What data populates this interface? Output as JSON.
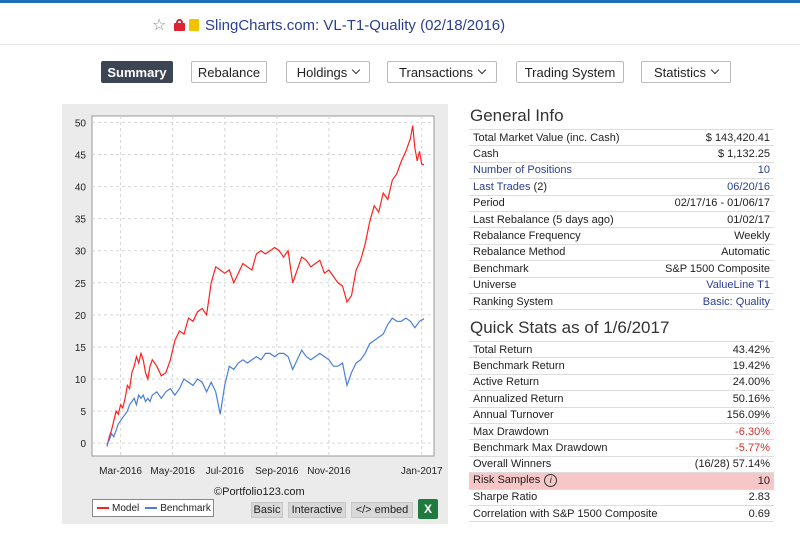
{
  "header": {
    "title": "SlingCharts.com: VL-T1-Quality (02/18/2016)"
  },
  "nav": {
    "summary": "Summary",
    "rebalance": "Rebalance",
    "holdings": "Holdings",
    "transactions": "Transactions",
    "trading_system": "Trading System",
    "statistics": "Statistics"
  },
  "chart": {
    "credit": "©Portfolio123.com",
    "legend_model": "Model",
    "legend_benchmark": "Benchmark",
    "btn_basic": "Basic",
    "btn_interactive": "Interactive",
    "btn_embed": "</> embed",
    "excel_icon": "X"
  },
  "chart_data": {
    "type": "line",
    "x_labels": [
      "Mar-2016",
      "May-2016",
      "Jul-2016",
      "Sep-2016",
      "Nov-2016",
      "Jan-2017"
    ],
    "y_ticks": [
      0,
      5,
      10,
      15,
      20,
      25,
      30,
      35,
      40,
      45,
      50
    ],
    "ylim": [
      -2,
      51
    ],
    "grid": true,
    "legend_position": "bottom-left",
    "colors": {
      "model": "#ff2020",
      "benchmark": "#4a7fd6"
    },
    "series": [
      {
        "name": "Model",
        "points": [
          [
            0,
            -0.5
          ],
          [
            0.05,
            1
          ],
          [
            0.1,
            2
          ],
          [
            0.15,
            3.5
          ],
          [
            0.2,
            5
          ],
          [
            0.25,
            4.5
          ],
          [
            0.3,
            6
          ],
          [
            0.35,
            5.5
          ],
          [
            0.4,
            7
          ],
          [
            0.45,
            9
          ],
          [
            0.5,
            8.5
          ],
          [
            0.55,
            11
          ],
          [
            0.6,
            12
          ],
          [
            0.65,
            13.5
          ],
          [
            0.7,
            12.5
          ],
          [
            0.75,
            14
          ],
          [
            0.8,
            13
          ],
          [
            0.85,
            11
          ],
          [
            0.9,
            10
          ],
          [
            0.95,
            12
          ],
          [
            1.0,
            13
          ],
          [
            1.1,
            12
          ],
          [
            1.2,
            10.5
          ],
          [
            1.3,
            11
          ],
          [
            1.4,
            13
          ],
          [
            1.5,
            16
          ],
          [
            1.6,
            17.5
          ],
          [
            1.7,
            17
          ],
          [
            1.8,
            19.5
          ],
          [
            1.9,
            19
          ],
          [
            2.0,
            20.5
          ],
          [
            2.1,
            21
          ],
          [
            2.2,
            20
          ],
          [
            2.3,
            25
          ],
          [
            2.4,
            27.5
          ],
          [
            2.5,
            27
          ],
          [
            2.6,
            26.5
          ],
          [
            2.7,
            27
          ],
          [
            2.8,
            25
          ],
          [
            2.9,
            26.5
          ],
          [
            3.0,
            28
          ],
          [
            3.1,
            27.5
          ],
          [
            3.2,
            27
          ],
          [
            3.3,
            29.5
          ],
          [
            3.4,
            30
          ],
          [
            3.5,
            29.5
          ],
          [
            3.6,
            30
          ],
          [
            3.7,
            30.5
          ],
          [
            3.8,
            30
          ],
          [
            3.9,
            29
          ],
          [
            4.0,
            30
          ],
          [
            4.1,
            25
          ],
          [
            4.2,
            27
          ],
          [
            4.3,
            29
          ],
          [
            4.4,
            28.5
          ],
          [
            4.5,
            27.5
          ],
          [
            4.6,
            28
          ],
          [
            4.7,
            28.5
          ],
          [
            4.8,
            26.5
          ],
          [
            4.9,
            27
          ],
          [
            5.0,
            26
          ],
          [
            5.1,
            25
          ],
          [
            5.2,
            24.5
          ],
          [
            5.3,
            22
          ],
          [
            5.4,
            23
          ],
          [
            5.5,
            27
          ],
          [
            5.6,
            28.5
          ],
          [
            5.7,
            31
          ],
          [
            5.8,
            34.5
          ],
          [
            5.9,
            37
          ],
          [
            6.0,
            36
          ],
          [
            6.1,
            39
          ],
          [
            6.2,
            38
          ],
          [
            6.3,
            41
          ],
          [
            6.4,
            42
          ],
          [
            6.5,
            44
          ],
          [
            6.6,
            45.5
          ],
          [
            6.7,
            47.5
          ],
          [
            6.75,
            49.5
          ],
          [
            6.8,
            46
          ],
          [
            6.85,
            44
          ],
          [
            6.9,
            45.5
          ],
          [
            6.95,
            43.5
          ],
          [
            7.0,
            43.4
          ]
        ]
      },
      {
        "name": "Benchmark",
        "points": [
          [
            0,
            -0.2
          ],
          [
            0.05,
            0.5
          ],
          [
            0.1,
            1.5
          ],
          [
            0.15,
            1
          ],
          [
            0.2,
            2
          ],
          [
            0.25,
            3
          ],
          [
            0.3,
            3.5
          ],
          [
            0.35,
            4
          ],
          [
            0.4,
            4.5
          ],
          [
            0.45,
            5
          ],
          [
            0.5,
            6
          ],
          [
            0.55,
            6.5
          ],
          [
            0.6,
            7
          ],
          [
            0.65,
            6
          ],
          [
            0.7,
            7.5
          ],
          [
            0.75,
            7
          ],
          [
            0.8,
            7.5
          ],
          [
            0.85,
            6.5
          ],
          [
            0.9,
            7
          ],
          [
            0.95,
            6.5
          ],
          [
            1.0,
            7.5
          ],
          [
            1.1,
            8
          ],
          [
            1.2,
            7
          ],
          [
            1.3,
            8
          ],
          [
            1.4,
            8.5
          ],
          [
            1.5,
            7.5
          ],
          [
            1.6,
            8.5
          ],
          [
            1.7,
            10
          ],
          [
            1.8,
            9.5
          ],
          [
            1.9,
            9
          ],
          [
            2.0,
            10
          ],
          [
            2.1,
            9.5
          ],
          [
            2.2,
            8
          ],
          [
            2.3,
            9.5
          ],
          [
            2.4,
            8
          ],
          [
            2.5,
            4.5
          ],
          [
            2.6,
            9
          ],
          [
            2.7,
            12
          ],
          [
            2.8,
            11.5
          ],
          [
            2.9,
            12.5
          ],
          [
            3.0,
            13
          ],
          [
            3.1,
            12.5
          ],
          [
            3.2,
            13
          ],
          [
            3.3,
            13.5
          ],
          [
            3.4,
            13
          ],
          [
            3.5,
            14
          ],
          [
            3.6,
            14
          ],
          [
            3.7,
            13.5
          ],
          [
            3.8,
            14
          ],
          [
            3.9,
            14
          ],
          [
            4.0,
            13.5
          ],
          [
            4.1,
            11.5
          ],
          [
            4.2,
            13
          ],
          [
            4.3,
            14.5
          ],
          [
            4.4,
            13.5
          ],
          [
            4.5,
            13
          ],
          [
            4.6,
            13.5
          ],
          [
            4.7,
            14
          ],
          [
            4.8,
            13.5
          ],
          [
            4.9,
            13
          ],
          [
            5.0,
            12
          ],
          [
            5.1,
            12
          ],
          [
            5.2,
            12.5
          ],
          [
            5.3,
            9
          ],
          [
            5.4,
            11
          ],
          [
            5.5,
            12.5
          ],
          [
            5.6,
            13
          ],
          [
            5.7,
            14
          ],
          [
            5.8,
            15.5
          ],
          [
            5.9,
            16
          ],
          [
            6.0,
            16.5
          ],
          [
            6.1,
            17
          ],
          [
            6.2,
            18.5
          ],
          [
            6.3,
            19.5
          ],
          [
            6.4,
            19
          ],
          [
            6.5,
            19
          ],
          [
            6.6,
            19.5
          ],
          [
            6.7,
            19
          ],
          [
            6.75,
            18.5
          ],
          [
            6.8,
            18
          ],
          [
            6.9,
            19
          ],
          [
            7.0,
            19.4
          ]
        ]
      }
    ]
  },
  "general_info": {
    "title": "General Info",
    "rows": [
      {
        "label": "Total Market Value (inc. Cash)",
        "value": "$ 143,420.41"
      },
      {
        "label": "Cash",
        "value": "$ 1,132.25"
      },
      {
        "label": "Number of Positions",
        "value": "10"
      },
      {
        "label": "Last Trades",
        "extra": "(2)",
        "value": "06/20/16"
      },
      {
        "label": "Period",
        "value": "02/17/16 - 01/06/17"
      },
      {
        "label": "Last Rebalance (5 days ago)",
        "value": "01/02/17"
      },
      {
        "label": "Rebalance Frequency",
        "value": "Weekly"
      },
      {
        "label": "Rebalance Method",
        "value": "Automatic"
      },
      {
        "label": "Benchmark",
        "value": "S&P 1500 Composite"
      },
      {
        "label": "Universe",
        "value": "ValueLine T1"
      },
      {
        "label": "Ranking System",
        "value": "Basic: Quality"
      }
    ]
  },
  "quick_stats": {
    "title": "Quick Stats as of 1/6/2017",
    "rows": [
      {
        "label": "Total Return",
        "value": "43.42%"
      },
      {
        "label": "Benchmark Return",
        "value": "19.42%"
      },
      {
        "label": "Active Return",
        "value": "24.00%"
      },
      {
        "label": "Annualized Return",
        "value": "50.16%"
      },
      {
        "label": "Annual Turnover",
        "value": "156.09%"
      },
      {
        "label": "Max Drawdown",
        "value": "-6.30%"
      },
      {
        "label": "Benchmark Max Drawdown",
        "value": "-5.77%"
      },
      {
        "label": "Overall Winners",
        "value": "(16/28) 57.14%"
      },
      {
        "label": "Risk Samples",
        "value": "10",
        "icon": "i"
      },
      {
        "label": "Sharpe Ratio",
        "value": "2.83"
      },
      {
        "label": "Correlation with S&P 1500 Composite",
        "value": "0.69"
      }
    ]
  }
}
